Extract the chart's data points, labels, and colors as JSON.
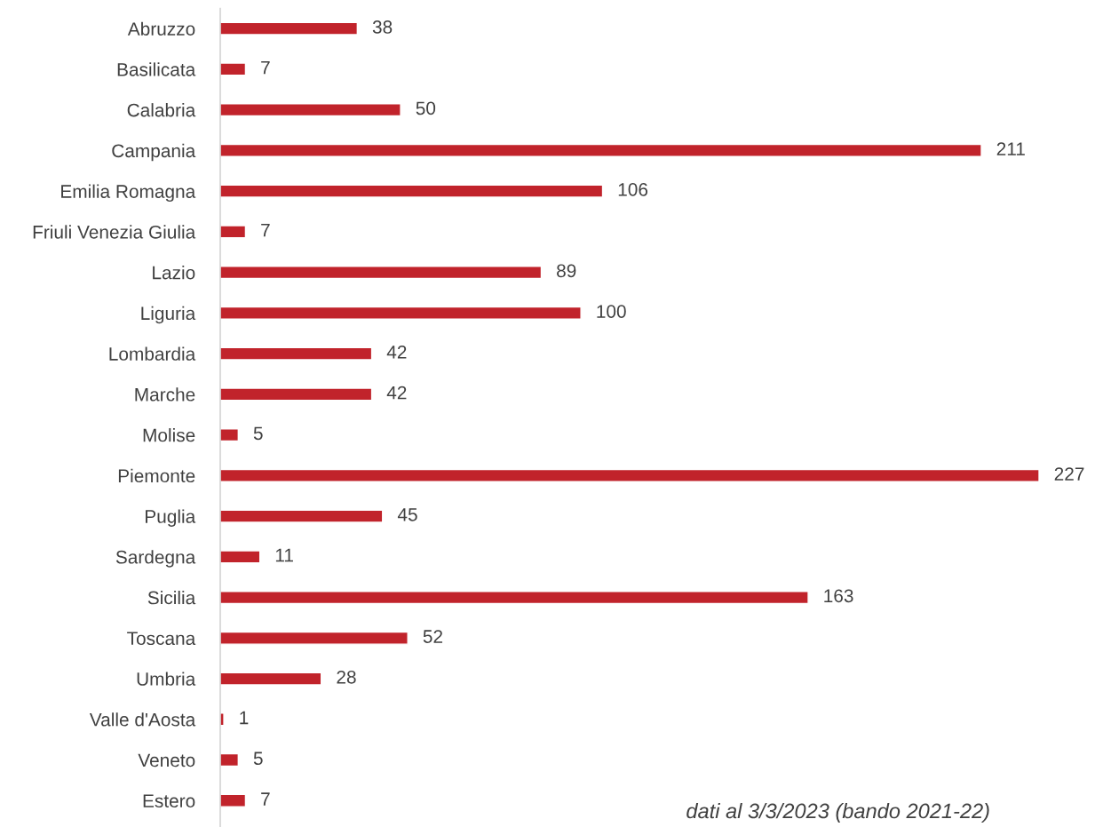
{
  "chart_data": {
    "type": "bar",
    "orientation": "horizontal",
    "categories": [
      "Abruzzo",
      "Basilicata",
      "Calabria",
      "Campania",
      "Emilia Romagna",
      "Friuli Venezia Giulia",
      "Lazio",
      "Liguria",
      "Lombardia",
      "Marche",
      "Molise",
      "Piemonte",
      "Puglia",
      "Sardegna",
      "Sicilia",
      "Toscana",
      "Umbria",
      "Valle d'Aosta",
      "Veneto",
      "Estero"
    ],
    "values": [
      38,
      7,
      50,
      211,
      106,
      7,
      89,
      100,
      42,
      42,
      5,
      227,
      45,
      11,
      163,
      52,
      28,
      1,
      5,
      7
    ],
    "color": "#c1232b",
    "data_labels": true,
    "annotations": [
      "dati al 3/3/2023 (bando 2021-22)"
    ]
  }
}
